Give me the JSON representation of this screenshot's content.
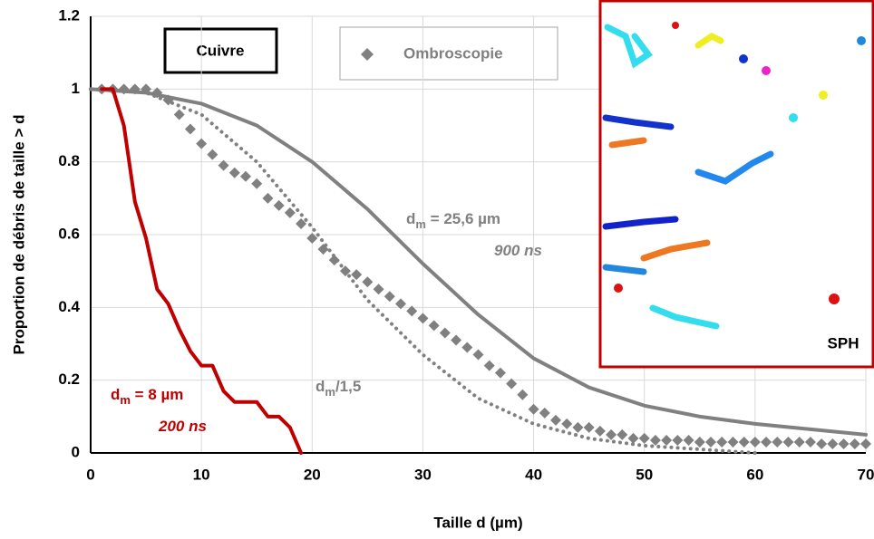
{
  "chart_data": {
    "type": "line",
    "x_label": "Taille d (µm)",
    "y_label": "Proportion de débris de taille > d",
    "xlim": [
      0,
      70
    ],
    "xticks": [
      0,
      10,
      20,
      30,
      40,
      50,
      60,
      70
    ],
    "ylim": [
      0,
      1.2
    ],
    "yticks": [
      0,
      0.2,
      0.4,
      0.6,
      0.8,
      1,
      1.2
    ],
    "grid": true,
    "box_label": "Cuivre",
    "inset_label": "SPH",
    "inset_color": "#c00000",
    "series": [
      {
        "style": "solid",
        "color": "#808080",
        "x": [
          0,
          5,
          10,
          15,
          20,
          25,
          30,
          35,
          40,
          45,
          50,
          55,
          60,
          65,
          70
        ],
        "values": [
          1,
          0.99,
          0.96,
          0.9,
          0.8,
          0.67,
          0.52,
          0.38,
          0.26,
          0.18,
          0.13,
          0.1,
          0.08,
          0.065,
          0.05
        ]
      },
      {
        "style": "dotted",
        "color": "#808080",
        "x": [
          0,
          5,
          10,
          15,
          20,
          25,
          30,
          35,
          40,
          45,
          50,
          55,
          60
        ],
        "values": [
          1,
          0.99,
          0.93,
          0.8,
          0.62,
          0.42,
          0.27,
          0.15,
          0.08,
          0.04,
          0.02,
          0.01,
          0
        ]
      },
      {
        "style": "markers",
        "name": "Ombroscopie",
        "color": "#808080",
        "x": [
          1,
          2,
          3,
          4,
          5,
          6,
          7,
          8,
          9,
          10,
          11,
          12,
          13,
          14,
          15,
          16,
          17,
          18,
          19,
          20,
          21,
          22,
          23,
          24,
          25,
          26,
          27,
          28,
          29,
          30,
          31,
          32,
          33,
          34,
          35,
          36,
          37,
          38,
          39,
          40,
          41,
          42,
          43,
          44,
          45,
          46,
          47,
          48,
          49,
          50,
          51,
          52,
          53,
          54,
          55,
          56,
          57,
          58,
          59,
          60,
          61,
          62,
          63,
          64,
          65,
          66,
          67,
          68,
          69,
          70
        ],
        "values": [
          1,
          1,
          1,
          1,
          1,
          0.99,
          0.97,
          0.93,
          0.89,
          0.85,
          0.82,
          0.79,
          0.77,
          0.76,
          0.74,
          0.7,
          0.68,
          0.66,
          0.63,
          0.59,
          0.56,
          0.53,
          0.5,
          0.49,
          0.47,
          0.45,
          0.43,
          0.41,
          0.39,
          0.37,
          0.35,
          0.33,
          0.31,
          0.29,
          0.27,
          0.24,
          0.22,
          0.19,
          0.16,
          0.12,
          0.11,
          0.09,
          0.08,
          0.07,
          0.07,
          0.06,
          0.05,
          0.05,
          0.04,
          0.04,
          0.035,
          0.035,
          0.035,
          0.035,
          0.03,
          0.03,
          0.03,
          0.03,
          0.03,
          0.03,
          0.03,
          0.03,
          0.03,
          0.03,
          0.03,
          0.025,
          0.025,
          0.025,
          0.025,
          0.025
        ]
      },
      {
        "style": "solid",
        "color": "#c00000",
        "x": [
          1,
          2,
          3,
          4,
          5,
          6,
          7,
          8,
          9,
          10,
          11,
          12,
          13,
          14,
          15,
          16,
          17,
          18,
          19
        ],
        "values": [
          1,
          1,
          0.9,
          0.69,
          0.59,
          0.45,
          0.41,
          0.34,
          0.28,
          0.24,
          0.24,
          0.17,
          0.14,
          0.14,
          0.14,
          0.1,
          0.1,
          0.07,
          0
        ]
      }
    ],
    "annotations": [
      {
        "base": "d",
        "sub": "m",
        "text": " = 25,6 µm",
        "color": "#808080"
      },
      {
        "text": "900 ns",
        "color": "#808080"
      },
      {
        "base": "d",
        "sub": "m",
        "text": "/1,5",
        "color": "#808080"
      },
      {
        "base": "d",
        "sub": "m",
        "text": " = 8 µm",
        "color": "#c00000"
      },
      {
        "text": "200 ns",
        "color": "#c00000"
      }
    ]
  }
}
